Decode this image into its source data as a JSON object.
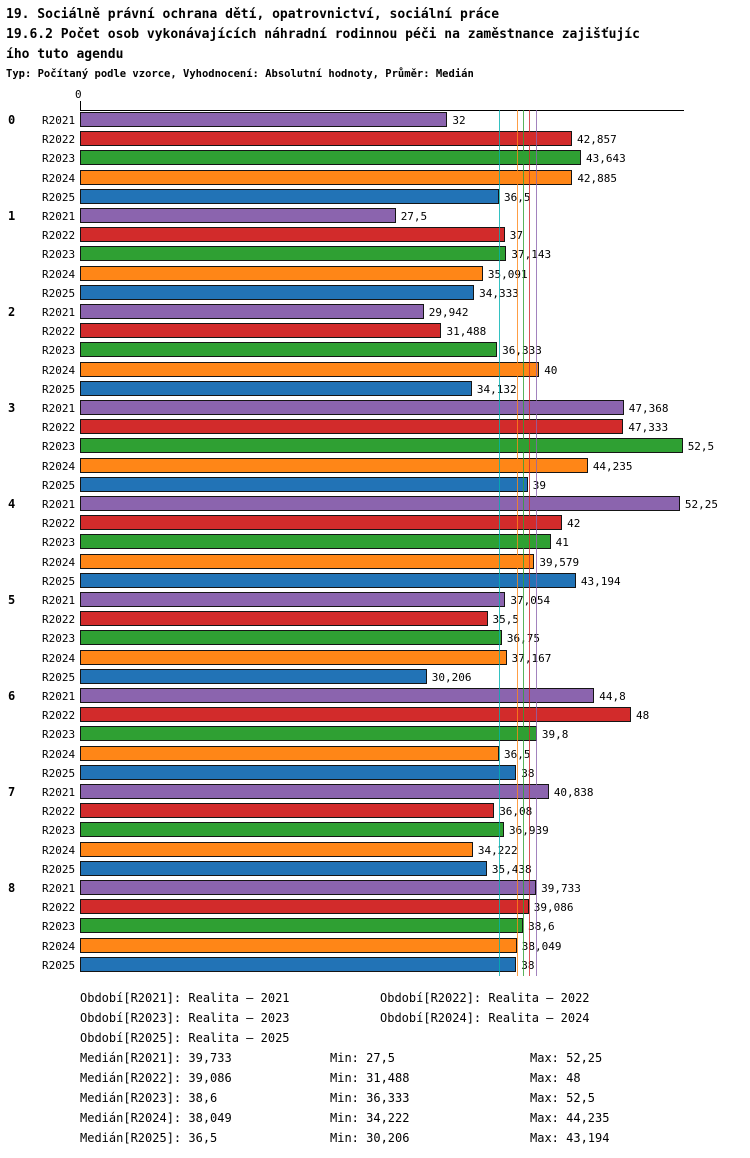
{
  "title": {
    "line1": "19. Sociálně právní ochrana dětí, opatrovnictví, sociální práce",
    "line2": "19.6.2 Počet osob vykonávajících náhradní rodinnou péči na zaměstnance zajišťujíc",
    "line3": "ího tuto agendu",
    "meta": "Typ: Počítaný podle vzorce, Vyhodnocení: Absolutní hodnoty, Průměr: Medián"
  },
  "chart_data": {
    "type": "bar",
    "orientation": "horizontal",
    "axis": {
      "zero_label": "0",
      "x_min": 0,
      "x_max_estimated": 52.5
    },
    "groups": [
      "0",
      "1",
      "2",
      "3",
      "4",
      "5",
      "6",
      "7",
      "8"
    ],
    "series": [
      {
        "name": "R2021",
        "color": "#8b64ae",
        "median_line_color": "#8b64ae",
        "median": 39.733,
        "values": [
          32,
          27.5,
          29.942,
          47.368,
          52.25,
          37.054,
          44.8,
          40.838,
          39.733
        ],
        "labels": [
          "32",
          "27,5",
          "29,942",
          "47,368",
          "52,25",
          "37,054",
          "44,8",
          "40,838",
          "39,733"
        ]
      },
      {
        "name": "R2022",
        "color": "#d22b2b",
        "median_line_color": "#d22b2b",
        "median": 39.086,
        "values": [
          42.857,
          37,
          31.488,
          47.333,
          42,
          35.5,
          48,
          36.08,
          39.086
        ],
        "labels": [
          "42,857",
          "37",
          "31,488",
          "47,333",
          "42",
          "35,5",
          "48",
          "36,08",
          "39,086"
        ]
      },
      {
        "name": "R2023",
        "color": "#2fa033",
        "median_line_color": "#2fa033",
        "median": 38.6,
        "values": [
          43.643,
          37.143,
          36.333,
          52.5,
          41,
          36.75,
          39.8,
          36.939,
          38.6
        ],
        "labels": [
          "43,643",
          "37,143",
          "36,333",
          "52,5",
          "41",
          "36,75",
          "39,8",
          "36,939",
          "38,6"
        ]
      },
      {
        "name": "R2024",
        "color": "#ff8617",
        "median_line_color": "#ff8617",
        "median": 38.049,
        "values": [
          42.885,
          35.091,
          40,
          44.235,
          39.579,
          37.167,
          36.5,
          34.222,
          38.049
        ],
        "labels": [
          "42,885",
          "35,091",
          "40",
          "44,235",
          "39,579",
          "37,167",
          "36,5",
          "34,222",
          "38,049"
        ]
      },
      {
        "name": "R2025",
        "color": "#2273b6",
        "median_line_color": "#00b1b1",
        "median": 36.5,
        "values": [
          36.5,
          34.333,
          34.132,
          39,
          43.194,
          30.206,
          38,
          35.438,
          38
        ],
        "labels": [
          "36,5",
          "34,333",
          "34,132",
          "39",
          "43,194",
          "30,206",
          "38",
          "35,438",
          "38"
        ]
      }
    ]
  },
  "footer": {
    "period_rows": [
      [
        "Období[R2021]: Realita – 2021",
        "Období[R2022]: Realita – 2022"
      ],
      [
        "Období[R2023]: Realita – 2023",
        "Období[R2024]: Realita – 2024"
      ],
      [
        "Období[R2025]: Realita – 2025"
      ]
    ],
    "stat_rows": [
      [
        "Medián[R2021]: 39,733",
        "Min: 27,5",
        "Max: 52,25"
      ],
      [
        "Medián[R2022]: 39,086",
        "Min: 31,488",
        "Max: 48"
      ],
      [
        "Medián[R2023]: 38,6",
        "Min: 36,333",
        "Max: 52,5"
      ],
      [
        "Medián[R2024]: 38,049",
        "Min: 34,222",
        "Max: 44,235"
      ],
      [
        "Medián[R2025]: 36,5",
        "Min: 30,206",
        "Max: 43,194"
      ]
    ]
  }
}
